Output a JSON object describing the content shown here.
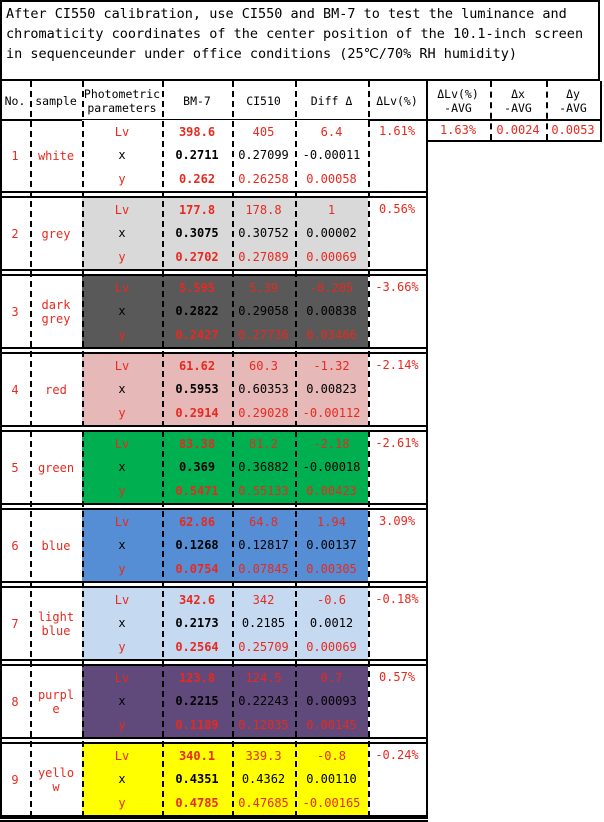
{
  "title": "After CI550 calibration, use CI550 and BM-7 to test the luminance and chromaticity coordinates of the center position of the 10.1-inch screen in sequenceunder under office conditions (25℃/70% RH humidity)",
  "headers": {
    "no": "No.",
    "sample": "sample",
    "param": "Photometric\nparameters",
    "bm7": "BM-7",
    "ci510": "CI510",
    "diff": "Diff Δ",
    "dlv": "ΔLv(%)"
  },
  "avg": {
    "headers": [
      "ΔLv(%)\n-AVG",
      "Δx\n-AVG",
      "Δy\n-AVG"
    ],
    "values": [
      "1.63%",
      "0.0024",
      "0.0053"
    ]
  },
  "colors": {
    "white": "#ffffff",
    "grey": "#d9d9d9",
    "dark grey": "#595959",
    "red": "#e6b8b7",
    "green": "#00b050",
    "blue": "#558ed5",
    "light blue": "#c5d9f1",
    "purple": "#604a7b",
    "yellow": "#ffff00",
    "text_red": "#e8291f"
  },
  "rows": [
    {
      "no": "1",
      "sample": "white",
      "bg": "#ffffff",
      "dlv": "1.61%",
      "params": [
        "Lv",
        "x",
        "y"
      ],
      "bm7": [
        "398.6",
        "0.2711",
        "0.262"
      ],
      "ci510": [
        "405",
        "0.27099",
        "0.26258"
      ],
      "diff": [
        "6.4",
        "-0.00011",
        "0.00058"
      ]
    },
    {
      "no": "2",
      "sample": "grey",
      "bg": "#d9d9d9",
      "dlv": "0.56%",
      "params": [
        "Lv",
        "x",
        "y"
      ],
      "bm7": [
        "177.8",
        "0.3075",
        "0.2702"
      ],
      "ci510": [
        "178.8",
        "0.30752",
        "0.27089"
      ],
      "diff": [
        "1",
        "0.00002",
        "0.00069"
      ]
    },
    {
      "no": "3",
      "sample": "dark\ngrey",
      "bg": "#595959",
      "dlv": "-3.66%",
      "params": [
        "Lv",
        "x",
        "y"
      ],
      "bm7": [
        "5.595",
        "0.2822",
        "0.2427"
      ],
      "ci510": [
        "5.39",
        "0.29058",
        "0.27736"
      ],
      "diff": [
        "-0.205",
        "0.00838",
        "0.03466"
      ]
    },
    {
      "no": "4",
      "sample": "red",
      "bg": "#e6b8b7",
      "dlv": "-2.14%",
      "params": [
        "Lv",
        "x",
        "y"
      ],
      "bm7": [
        "61.62",
        "0.5953",
        "0.2914"
      ],
      "ci510": [
        "60.3",
        "0.60353",
        "0.29028"
      ],
      "diff": [
        "-1.32",
        "0.00823",
        "-0.00112"
      ]
    },
    {
      "no": "5",
      "sample": "green",
      "bg": "#00b050",
      "dlv": "-2.61%",
      "params": [
        "Lv",
        "x",
        "y"
      ],
      "bm7": [
        "83.38",
        "0.369",
        "0.5471"
      ],
      "ci510": [
        "81.2",
        "0.36882",
        "0.55133"
      ],
      "diff": [
        "-2.18",
        "-0.00018",
        "0.00423"
      ]
    },
    {
      "no": "6",
      "sample": "blue",
      "bg": "#558ed5",
      "dlv": "3.09%",
      "params": [
        "Lv",
        "x",
        "y"
      ],
      "bm7": [
        "62.86",
        "0.1268",
        "0.0754"
      ],
      "ci510": [
        "64.8",
        "0.12817",
        "0.07845"
      ],
      "diff": [
        "1.94",
        "0.00137",
        "0.00305"
      ]
    },
    {
      "no": "7",
      "sample": "light\nblue",
      "bg": "#c5d9f1",
      "dlv": "-0.18%",
      "params": [
        "Lv",
        "x",
        "y"
      ],
      "bm7": [
        "342.6",
        "0.2173",
        "0.2564"
      ],
      "ci510": [
        "342",
        "0.2185",
        "0.25709"
      ],
      "diff": [
        "-0.6",
        "0.0012",
        "0.00069"
      ]
    },
    {
      "no": "8",
      "sample": "purpl\ne",
      "bg": "#604a7b",
      "dlv": "0.57%",
      "params": [
        "Lv",
        "x",
        "y"
      ],
      "bm7": [
        "123.8",
        "0.2215",
        "0.1189"
      ],
      "ci510": [
        "124.5",
        "0.22243",
        "0.12035"
      ],
      "diff": [
        "0.7",
        "0.00093",
        "0.00145"
      ]
    },
    {
      "no": "9",
      "sample": "yello\nw",
      "bg": "#ffff00",
      "dlv": "-0.24%",
      "params": [
        "Lv",
        "x",
        "y"
      ],
      "bm7": [
        "340.1",
        "0.4351",
        "0.4785"
      ],
      "ci510": [
        "339.3",
        "0.4362",
        "0.47685"
      ],
      "diff": [
        "-0.8",
        "0.00110",
        "-0.00165"
      ]
    }
  ]
}
